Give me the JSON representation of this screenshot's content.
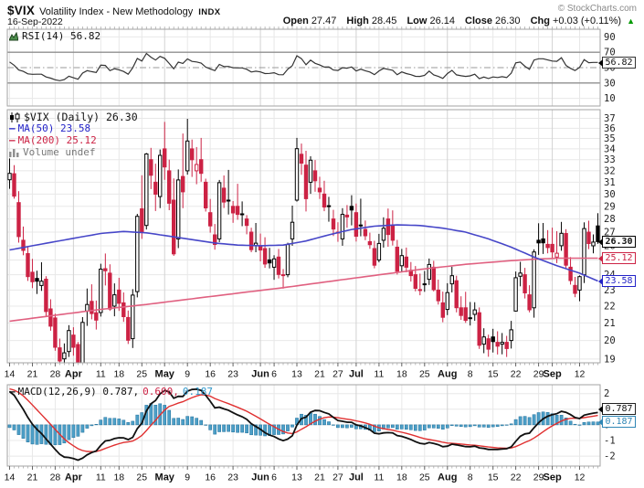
{
  "header": {
    "symbol": "$VIX",
    "title": "Volatility Index - New Methodology",
    "exchange": "INDX",
    "credit": "© StockCharts.com",
    "date": "16-Sep-2022",
    "up_arrow": "▲",
    "quote": {
      "open_label": "Open",
      "open": "27.47",
      "high_label": "High",
      "high": "28.45",
      "low_label": "Low",
      "low": "26.14",
      "close_label": "Close",
      "close": "26.30",
      "chg_label": "Chg",
      "chg": "+0.03 (+0.11%)"
    }
  },
  "panels": {
    "rsi": {
      "legend": "RSI(14) 56.82",
      "value_box": "56.82"
    },
    "main": {
      "symbol_legend": "$VIX (Daily) 26.30",
      "ma50_legend": "MA(50) 23.58",
      "ma200_legend": "MA(200) 25.12",
      "volume_legend": "Volume undef",
      "price_box": "26.30",
      "ma200_box": "25.12",
      "ma50_box": "23.58"
    },
    "macd": {
      "legend_macd": "MACD(12,26,9) 0.787,",
      "legend_signal": "0.600,",
      "legend_hist": "0.187",
      "macd_box": "0.787",
      "hist_box": "0.187"
    }
  },
  "colors": {
    "candle_up": "#000000",
    "candle_down": "#cc2244",
    "ma50": "#4646c8",
    "ma200": "#e06080",
    "rsi_line": "#333333",
    "macd_line": "#111111",
    "signal_line": "#e03030",
    "hist_fill": "#4d9fc7",
    "hist_stroke": "#1e6f9c",
    "grid": "#e8e8e8",
    "grid_month": "#d2d2d2",
    "border": "#a3a3a3",
    "chg_up": "#009900"
  },
  "chart_data": {
    "type": "candlestick",
    "title": "$VIX (Daily)",
    "log_scale": true,
    "y_axis_main": {
      "min": 19,
      "max": 37,
      "step": 1
    },
    "y_axis_rsi": {
      "ticks": [
        90,
        70,
        50,
        30,
        10
      ],
      "ref_high": 70,
      "ref_mid": 50,
      "ref_low": 30
    },
    "y_axis_macd": {
      "ticks": [
        2,
        1,
        0,
        -1,
        -2
      ]
    },
    "x_labels": [
      {
        "i": 0,
        "t": "14"
      },
      {
        "i": 5,
        "t": "21"
      },
      {
        "i": 10,
        "t": "28"
      },
      {
        "i": 14,
        "t": "Apr",
        "m": true
      },
      {
        "i": 20,
        "t": "11"
      },
      {
        "i": 24,
        "t": "18"
      },
      {
        "i": 29,
        "t": "25"
      },
      {
        "i": 34,
        "t": "May",
        "m": true
      },
      {
        "i": 39,
        "t": "9"
      },
      {
        "i": 44,
        "t": "16"
      },
      {
        "i": 49,
        "t": "23"
      },
      {
        "i": 55,
        "t": "Jun",
        "m": true
      },
      {
        "i": 58,
        "t": "6"
      },
      {
        "i": 63,
        "t": "13"
      },
      {
        "i": 68,
        "t": "21"
      },
      {
        "i": 72,
        "t": "27"
      },
      {
        "i": 76,
        "t": "Jul",
        "m": true
      },
      {
        "i": 81,
        "t": "11"
      },
      {
        "i": 86,
        "t": "18"
      },
      {
        "i": 91,
        "t": "25"
      },
      {
        "i": 96,
        "t": "Aug",
        "m": true
      },
      {
        "i": 101,
        "t": "8"
      },
      {
        "i": 106,
        "t": "15"
      },
      {
        "i": 111,
        "t": "22"
      },
      {
        "i": 116,
        "t": "29"
      },
      {
        "i": 119,
        "t": "Sep",
        "m": true
      },
      {
        "i": 125,
        "t": "12"
      }
    ],
    "candles": [
      [
        31.21,
        33.11,
        30.44,
        31.77
      ],
      [
        31.74,
        32.5,
        29.62,
        29.83
      ],
      [
        29.3,
        30.24,
        26.23,
        26.67
      ],
      [
        26.4,
        27.42,
        25.33,
        25.67
      ],
      [
        25.44,
        25.93,
        23.59,
        23.87
      ],
      [
        24.16,
        25.07,
        23.12,
        23.53
      ],
      [
        23.75,
        24.27,
        22.75,
        23.57
      ],
      [
        23.29,
        24.84,
        22.95,
        23.57
      ],
      [
        23.7,
        23.9,
        21.42,
        21.67
      ],
      [
        21.83,
        22.42,
        20.55,
        20.81
      ],
      [
        21.29,
        21.54,
        19.44,
        19.63
      ],
      [
        19.6,
        20.11,
        18.7,
        18.9
      ],
      [
        19.01,
        19.84,
        18.72,
        19.33
      ],
      [
        19.4,
        20.87,
        19.11,
        20.56
      ],
      [
        20.3,
        20.75,
        19.18,
        19.63
      ],
      [
        19.78,
        19.92,
        18.7,
        18.72
      ],
      [
        18.8,
        21.34,
        18.7,
        21.03
      ],
      [
        21.7,
        23.1,
        20.83,
        22.1
      ],
      [
        22.29,
        23.37,
        21.21,
        21.55
      ],
      [
        21.6,
        22.34,
        20.62,
        21.16
      ],
      [
        21.61,
        24.74,
        21.37,
        24.37
      ],
      [
        24.4,
        25.45,
        23.29,
        24.26
      ],
      [
        24.1,
        24.7,
        21.71,
        21.82
      ],
      [
        22.0,
        23.43,
        21.39,
        22.7
      ],
      [
        23.0,
        23.79,
        21.71,
        22.17
      ],
      [
        22.2,
        22.85,
        21.06,
        21.37
      ],
      [
        21.32,
        21.73,
        19.81,
        20.02
      ],
      [
        20.1,
        23.06,
        19.59,
        22.68
      ],
      [
        22.9,
        28.4,
        22.54,
        28.21
      ],
      [
        28.8,
        31.6,
        26.5,
        27.02
      ],
      [
        27.5,
        33.62,
        27.2,
        33.52
      ],
      [
        33.0,
        34.1,
        30.42,
        31.6
      ],
      [
        31.0,
        32.64,
        28.63,
        29.99
      ],
      [
        29.8,
        33.94,
        28.86,
        33.4
      ],
      [
        34.0,
        36.64,
        31.21,
        32.34
      ],
      [
        32.0,
        33.0,
        28.69,
        29.25
      ],
      [
        29.5,
        31.33,
        25.28,
        25.42
      ],
      [
        26.5,
        32.12,
        25.83,
        31.2
      ],
      [
        31.5,
        35.48,
        28.85,
        30.19
      ],
      [
        32.0,
        36.95,
        31.66,
        34.75
      ],
      [
        34.0,
        34.89,
        31.46,
        32.99
      ],
      [
        32.0,
        34.17,
        30.83,
        32.56
      ],
      [
        33.0,
        35.05,
        31.05,
        31.77
      ],
      [
        31.0,
        31.31,
        28.58,
        28.87
      ],
      [
        28.5,
        29.6,
        26.96,
        27.47
      ],
      [
        26.8,
        27.62,
        25.72,
        26.1
      ],
      [
        26.5,
        31.2,
        26.27,
        30.96
      ],
      [
        30.5,
        31.59,
        28.87,
        29.35
      ],
      [
        29.5,
        32.08,
        28.35,
        29.43
      ],
      [
        29.0,
        29.43,
        27.71,
        28.48
      ],
      [
        29.0,
        30.87,
        27.94,
        28.36
      ],
      [
        28.4,
        29.4,
        27.45,
        28.37
      ],
      [
        28.0,
        28.3,
        26.84,
        27.5
      ],
      [
        27.0,
        27.33,
        25.54,
        25.72
      ],
      [
        26.0,
        27.69,
        25.54,
        26.19
      ],
      [
        26.0,
        26.89,
        24.9,
        25.69
      ],
      [
        25.8,
        26.62,
        24.46,
        24.72
      ],
      [
        25.0,
        25.85,
        24.42,
        24.79
      ],
      [
        24.5,
        25.33,
        23.66,
        25.07
      ],
      [
        25.2,
        25.77,
        23.75,
        24.02
      ],
      [
        24.0,
        24.38,
        23.09,
        23.96
      ],
      [
        24.0,
        26.22,
        23.83,
        26.09
      ],
      [
        26.5,
        29.06,
        26.0,
        27.75
      ],
      [
        29.5,
        35.05,
        29.38,
        34.02
      ],
      [
        33.5,
        34.5,
        31.64,
        32.69
      ],
      [
        32.5,
        33.82,
        28.59,
        29.62
      ],
      [
        31.0,
        33.31,
        30.02,
        32.95
      ],
      [
        32.0,
        32.97,
        30.2,
        31.13
      ],
      [
        30.5,
        31.48,
        29.6,
        30.19
      ],
      [
        30.0,
        31.13,
        28.61,
        28.95
      ],
      [
        29.0,
        29.77,
        27.79,
        29.05
      ],
      [
        28.0,
        28.72,
        26.71,
        27.23
      ],
      [
        27.0,
        27.75,
        26.29,
        26.95
      ],
      [
        26.5,
        28.85,
        26.0,
        28.36
      ],
      [
        28.3,
        29.1,
        27.33,
        28.16
      ],
      [
        29.0,
        29.91,
        27.51,
        28.71
      ],
      [
        28.5,
        29.23,
        26.31,
        26.7
      ],
      [
        27.5,
        29.62,
        26.69,
        27.54
      ],
      [
        27.2,
        27.88,
        26.41,
        26.73
      ],
      [
        26.3,
        26.96,
        25.78,
        26.08
      ],
      [
        25.8,
        26.36,
        24.43,
        24.64
      ],
      [
        25.0,
        26.87,
        24.84,
        26.17
      ],
      [
        26.4,
        28.13,
        25.87,
        27.29
      ],
      [
        28.0,
        28.82,
        25.93,
        26.82
      ],
      [
        27.5,
        28.68,
        26.02,
        26.4
      ],
      [
        25.9,
        26.43,
        24.01,
        24.23
      ],
      [
        24.6,
        25.77,
        24.16,
        25.3
      ],
      [
        25.2,
        25.87,
        24.16,
        24.5
      ],
      [
        24.3,
        24.86,
        23.55,
        23.94
      ],
      [
        24.0,
        24.58,
        22.92,
        23.11
      ],
      [
        23.0,
        24.07,
        22.67,
        23.03
      ],
      [
        23.4,
        24.25,
        22.89,
        23.36
      ],
      [
        23.7,
        25.1,
        23.33,
        24.69
      ],
      [
        24.5,
        24.94,
        22.91,
        23.02
      ],
      [
        23.0,
        23.67,
        22.09,
        22.33
      ],
      [
        22.2,
        22.9,
        21.04,
        21.33
      ],
      [
        21.8,
        23.44,
        21.46,
        22.84
      ],
      [
        23.4,
        24.53,
        22.85,
        23.93
      ],
      [
        23.6,
        23.93,
        21.62,
        21.9
      ],
      [
        21.9,
        22.61,
        21.18,
        21.44
      ],
      [
        21.9,
        22.89,
        21.0,
        21.15
      ],
      [
        21.3,
        22.25,
        20.85,
        21.29
      ],
      [
        21.5,
        22.24,
        21.12,
        21.77
      ],
      [
        21.6,
        21.92,
        19.54,
        19.74
      ],
      [
        19.8,
        20.69,
        19.31,
        20.2
      ],
      [
        20.1,
        20.33,
        19.12,
        19.53
      ],
      [
        20.2,
        20.66,
        19.35,
        19.94
      ],
      [
        19.9,
        20.52,
        19.24,
        19.69
      ],
      [
        19.8,
        20.42,
        19.25,
        19.9
      ],
      [
        19.9,
        20.26,
        19.11,
        19.56
      ],
      [
        20.0,
        21.12,
        19.56,
        20.6
      ],
      [
        21.7,
        24.21,
        21.67,
        23.8
      ],
      [
        23.9,
        24.87,
        23.24,
        24.11
      ],
      [
        24.0,
        24.46,
        22.47,
        22.82
      ],
      [
        22.7,
        23.31,
        21.62,
        21.78
      ],
      [
        21.9,
        25.75,
        21.31,
        25.56
      ],
      [
        26.4,
        27.67,
        25.35,
        26.21
      ],
      [
        26.5,
        27.69,
        25.42,
        26.21
      ],
      [
        26.1,
        27.15,
        25.46,
        25.87
      ],
      [
        26.1,
        27.34,
        25.05,
        25.56
      ],
      [
        25.2,
        27.07,
        24.78,
        25.47
      ],
      [
        26.0,
        27.78,
        25.64,
        26.91
      ],
      [
        26.9,
        27.22,
        24.45,
        24.64
      ],
      [
        24.5,
        25.2,
        23.35,
        23.61
      ],
      [
        23.3,
        23.85,
        22.55,
        22.79
      ],
      [
        23.0,
        23.95,
        22.3,
        23.87
      ],
      [
        24.0,
        27.74,
        23.45,
        27.27
      ],
      [
        27.0,
        27.87,
        25.76,
        26.16
      ],
      [
        26.0,
        26.83,
        25.46,
        26.27
      ],
      [
        27.47,
        28.45,
        26.14,
        26.3
      ]
    ],
    "ma50_points": [
      [
        0,
        25.7
      ],
      [
        5,
        26.0
      ],
      [
        10,
        26.3
      ],
      [
        15,
        26.6
      ],
      [
        20,
        26.9
      ],
      [
        25,
        27.05
      ],
      [
        30,
        26.95
      ],
      [
        35,
        26.7
      ],
      [
        40,
        26.45
      ],
      [
        45,
        26.2
      ],
      [
        50,
        26.05
      ],
      [
        55,
        26.0
      ],
      [
        60,
        26.05
      ],
      [
        65,
        26.35
      ],
      [
        70,
        26.8
      ],
      [
        75,
        27.2
      ],
      [
        80,
        27.45
      ],
      [
        85,
        27.55
      ],
      [
        90,
        27.5
      ],
      [
        95,
        27.3
      ],
      [
        100,
        27.0
      ],
      [
        105,
        26.5
      ],
      [
        110,
        25.9
      ],
      [
        115,
        25.2
      ],
      [
        120,
        24.6
      ],
      [
        125,
        24.1
      ],
      [
        129,
        23.58
      ]
    ],
    "ma200_points": [
      [
        0,
        21.1
      ],
      [
        10,
        21.45
      ],
      [
        20,
        21.8
      ],
      [
        30,
        22.1
      ],
      [
        40,
        22.45
      ],
      [
        50,
        22.8
      ],
      [
        60,
        23.15
      ],
      [
        70,
        23.55
      ],
      [
        80,
        23.95
      ],
      [
        90,
        24.35
      ],
      [
        100,
        24.7
      ],
      [
        110,
        24.95
      ],
      [
        115,
        25.05
      ],
      [
        120,
        25.12
      ],
      [
        129,
        25.12
      ]
    ],
    "rsi_seed": [
      1.05,
      0.78
    ],
    "rsi_final": 56.82,
    "macd_seed": [
      30.6,
      28.4,
      2.35
    ],
    "macd_final": [
      0.787,
      0.6,
      0.187
    ]
  }
}
